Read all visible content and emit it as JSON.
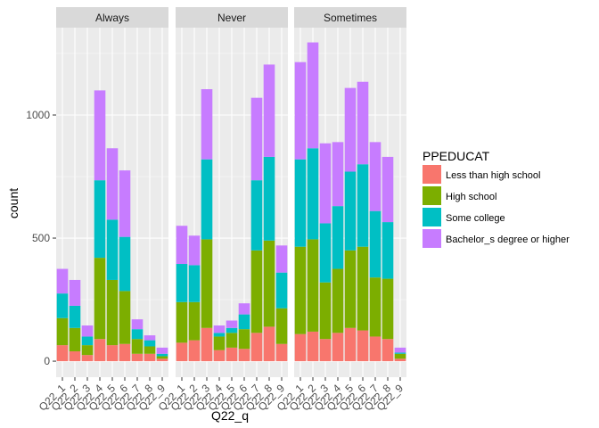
{
  "chart_data": {
    "type": "bar",
    "stacked": true,
    "facet_by": "frequency",
    "facets": [
      "Always",
      "Never",
      "Sometimes"
    ],
    "categories": [
      "Q22_1",
      "Q22_2",
      "Q22_3",
      "Q22_4",
      "Q22_5",
      "Q22_6",
      "Q22_7",
      "Q22_8",
      "Q22_9"
    ],
    "xlabel": "Q22_q",
    "ylabel": "count",
    "yticks": [
      0,
      500,
      1000
    ],
    "ylim": [
      -65,
      1355
    ],
    "grid": true,
    "legend": {
      "title": "PPEDUCAT",
      "position": "right",
      "entries": [
        {
          "name": "Less than high school",
          "color": "#F8766D"
        },
        {
          "name": "High school",
          "color": "#7CAE00"
        },
        {
          "name": "Some college",
          "color": "#00BFC4"
        },
        {
          "name": "Bachelor_s degree or higher",
          "color": "#C77CFF"
        }
      ]
    },
    "panels": [
      {
        "facet": "Always",
        "series": [
          {
            "name": "Less than high school",
            "values": [
              65,
              40,
              25,
              90,
              65,
              70,
              30,
              30,
              10
            ]
          },
          {
            "name": "High school",
            "values": [
              110,
              95,
              40,
              330,
              265,
              215,
              60,
              30,
              10
            ]
          },
          {
            "name": "Some college",
            "values": [
              100,
              90,
              35,
              315,
              245,
              220,
              40,
              25,
              10
            ]
          },
          {
            "name": "Bachelor_s degree or higher",
            "values": [
              100,
              105,
              45,
              365,
              290,
              270,
              40,
              20,
              25
            ]
          }
        ]
      },
      {
        "facet": "Never",
        "series": [
          {
            "name": "Less than high school",
            "values": [
              75,
              85,
              135,
              45,
              55,
              50,
              115,
              140,
              70
            ]
          },
          {
            "name": "High school",
            "values": [
              165,
              155,
              360,
              55,
              60,
              80,
              335,
              350,
              145
            ]
          },
          {
            "name": "Some college",
            "values": [
              155,
              150,
              325,
              15,
              20,
              60,
              285,
              340,
              145
            ]
          },
          {
            "name": "Bachelor_s degree or higher",
            "values": [
              155,
              120,
              285,
              30,
              30,
              45,
              335,
              375,
              110
            ]
          }
        ]
      },
      {
        "facet": "Sometimes",
        "series": [
          {
            "name": "Less than high school",
            "values": [
              110,
              120,
              90,
              115,
              135,
              125,
              100,
              90,
              10
            ]
          },
          {
            "name": "High school",
            "values": [
              355,
              375,
              230,
              260,
              315,
              340,
              240,
              245,
              20
            ]
          },
          {
            "name": "Some college",
            "values": [
              355,
              370,
              240,
              255,
              320,
              335,
              270,
              230,
              5
            ]
          },
          {
            "name": "Bachelor_s degree or higher",
            "values": [
              395,
              430,
              325,
              260,
              340,
              335,
              280,
              265,
              20
            ]
          }
        ]
      }
    ]
  }
}
